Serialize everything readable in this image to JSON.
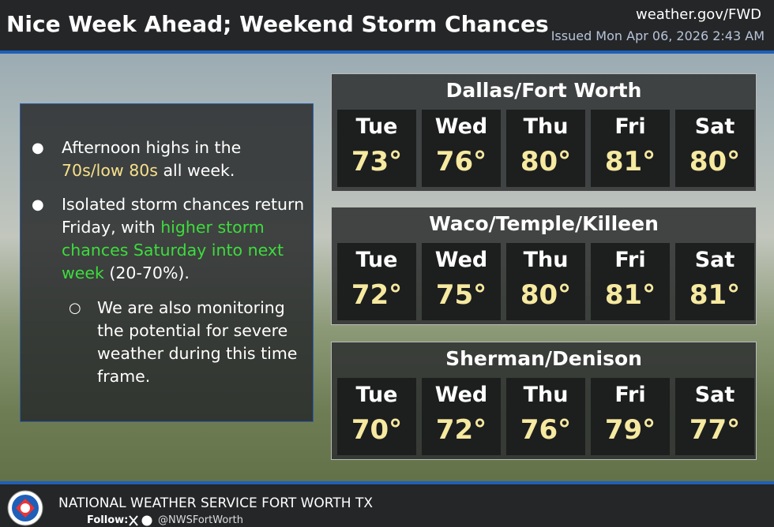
{
  "header": {
    "title": "Nice Week Ahead; Weekend Storm Chances",
    "site": "weather.gov/FWD",
    "issued": "Issued Mon Apr 06, 2026 2:43 AM"
  },
  "bullets": [
    {
      "segments": [
        {
          "text": "Afternoon highs in the ",
          "color": "#ffffff"
        },
        {
          "text": "70s/low 80s",
          "color": "#f6e08a"
        },
        {
          "text": " all week.",
          "color": "#ffffff"
        }
      ]
    },
    {
      "segments": [
        {
          "text": "Isolated storm chances return Friday, with ",
          "color": "#ffffff"
        },
        {
          "text": "higher storm chances Saturday into next week",
          "color": "#3ddc3d"
        },
        {
          "text": " (20-70%).",
          "color": "#ffffff"
        }
      ]
    },
    {
      "segments": [
        {
          "text": "We are also monitoring the potential for severe weather during this time frame.",
          "color": "#ffffff"
        }
      ]
    }
  ],
  "panels": [
    {
      "title": "Dallas/Fort Worth",
      "days": [
        {
          "day": "Tue",
          "high": {
            "value": 73,
            "label": "73°"
          }
        },
        {
          "day": "Wed",
          "high": {
            "value": 76,
            "label": "76°"
          }
        },
        {
          "day": "Thu",
          "high": {
            "value": 80,
            "label": "80°"
          }
        },
        {
          "day": "Fri",
          "high": {
            "value": 81,
            "label": "81°"
          }
        },
        {
          "day": "Sat",
          "high": {
            "value": 80,
            "label": "80°"
          }
        }
      ]
    },
    {
      "title": "Waco/Temple/Killeen",
      "days": [
        {
          "day": "Tue",
          "high": {
            "value": 72,
            "label": "72°"
          }
        },
        {
          "day": "Wed",
          "high": {
            "value": 75,
            "label": "75°"
          }
        },
        {
          "day": "Thu",
          "high": {
            "value": 80,
            "label": "80°"
          }
        },
        {
          "day": "Fri",
          "high": {
            "value": 81,
            "label": "81°"
          }
        },
        {
          "day": "Sat",
          "high": {
            "value": 81,
            "label": "81°"
          }
        }
      ]
    },
    {
      "title": "Sherman/Denison",
      "days": [
        {
          "day": "Tue",
          "high": {
            "value": 70,
            "label": "70°"
          }
        },
        {
          "day": "Wed",
          "high": {
            "value": 72,
            "label": "72°"
          }
        },
        {
          "day": "Thu",
          "high": {
            "value": 76,
            "label": "76°"
          }
        },
        {
          "day": "Fri",
          "high": {
            "value": 79,
            "label": "79°"
          }
        },
        {
          "day": "Sat",
          "high": {
            "value": 77,
            "label": "77°"
          }
        }
      ]
    }
  ],
  "footer": {
    "agency": "NATIONAL WEATHER SERVICE FORT WORTH TX",
    "follow": "Follow:",
    "handle": "@NWSFortWorth"
  }
}
